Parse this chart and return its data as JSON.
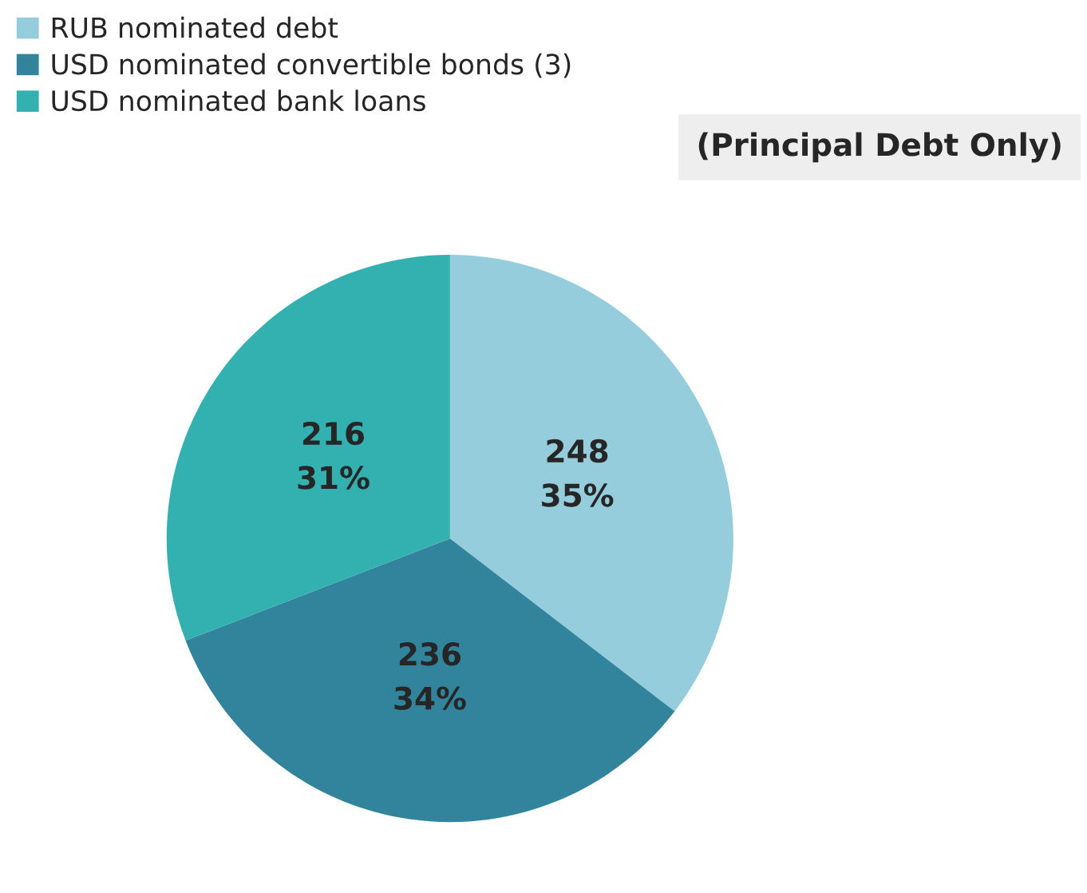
{
  "chart_data": {
    "type": "pie",
    "title": "(Principal Debt Only)",
    "categories": [
      "RUB nominated debt",
      "USD nominated convertible bonds (3)",
      "USD nominated bank loans"
    ],
    "values": [
      248,
      236,
      216
    ],
    "colors": [
      "#96cddc",
      "#31849b",
      "#33b0b0"
    ],
    "value_labels": [
      "248\n35%",
      "236\n34%",
      "216\n31%"
    ],
    "legend": "top left"
  }
}
